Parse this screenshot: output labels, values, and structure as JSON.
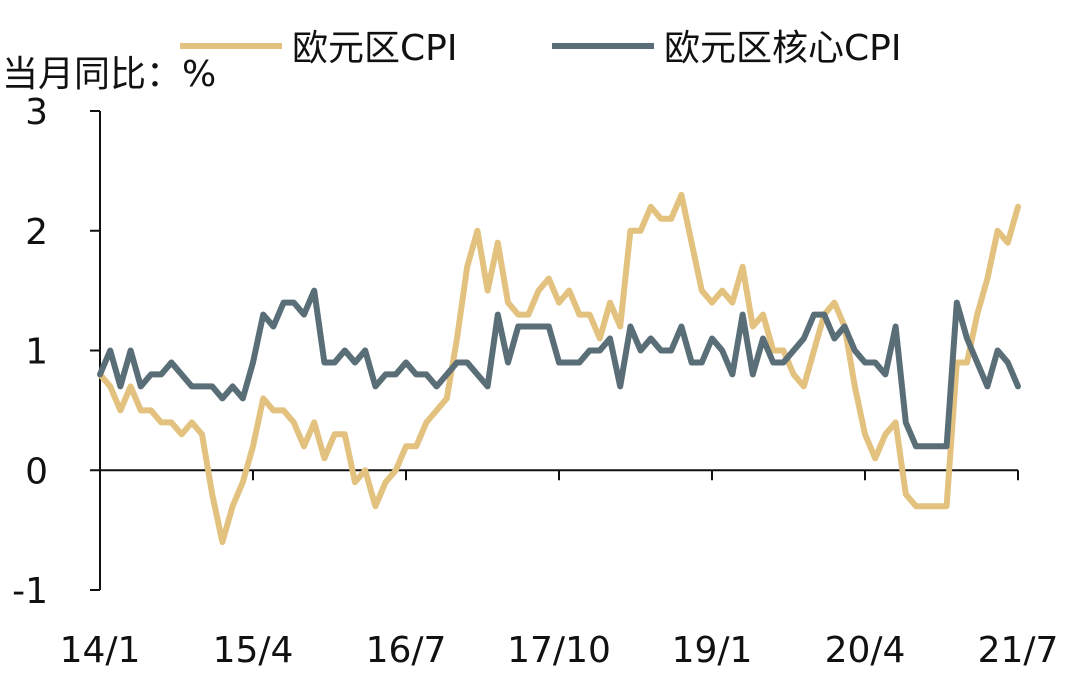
{
  "chart_data": {
    "type": "line",
    "ylabel": "当月同比：%",
    "ylim": [
      -1,
      3
    ],
    "yticks": [
      "3",
      "2",
      "1",
      "0",
      "-1"
    ],
    "xtick_labels": [
      "14/1",
      "15/4",
      "16/7",
      "17/10",
      "19/1",
      "20/4",
      "21/7"
    ],
    "legend_position": "top",
    "grid": false,
    "series": [
      {
        "name": "欧元区CPI",
        "color": "#e3c27f",
        "values": [
          0.8,
          0.7,
          0.5,
          0.7,
          0.5,
          0.5,
          0.4,
          0.4,
          0.3,
          0.4,
          0.3,
          -0.2,
          -0.6,
          -0.3,
          -0.1,
          0.2,
          0.6,
          0.5,
          0.5,
          0.4,
          0.2,
          0.4,
          0.1,
          0.3,
          0.3,
          -0.1,
          0.0,
          -0.3,
          -0.1,
          0.0,
          0.2,
          0.2,
          0.4,
          0.5,
          0.6,
          1.1,
          1.7,
          2.0,
          1.5,
          1.9,
          1.4,
          1.3,
          1.3,
          1.5,
          1.6,
          1.4,
          1.5,
          1.3,
          1.3,
          1.1,
          1.4,
          1.2,
          2.0,
          2.0,
          2.2,
          2.1,
          2.1,
          2.3,
          1.9,
          1.5,
          1.4,
          1.5,
          1.4,
          1.7,
          1.2,
          1.3,
          1.0,
          1.0,
          0.8,
          0.7,
          1.0,
          1.3,
          1.4,
          1.2,
          0.7,
          0.3,
          0.1,
          0.3,
          0.4,
          -0.2,
          -0.3,
          -0.3,
          -0.3,
          -0.3,
          0.9,
          0.9,
          1.3,
          1.6,
          2.0,
          1.9,
          2.2
        ]
      },
      {
        "name": "欧元区核心CPI",
        "color": "#5a6e78",
        "values": [
          0.8,
          1.0,
          0.7,
          1.0,
          0.7,
          0.8,
          0.8,
          0.9,
          0.8,
          0.7,
          0.7,
          0.7,
          0.6,
          0.7,
          0.6,
          0.9,
          1.3,
          1.2,
          1.4,
          1.4,
          1.3,
          1.5,
          0.9,
          0.9,
          1.0,
          0.9,
          1.0,
          0.7,
          0.8,
          0.8,
          0.9,
          0.8,
          0.8,
          0.7,
          0.8,
          0.9,
          0.9,
          0.8,
          0.7,
          1.3,
          0.9,
          1.2,
          1.2,
          1.2,
          1.2,
          0.9,
          0.9,
          0.9,
          1.0,
          1.0,
          1.1,
          0.7,
          1.2,
          1.0,
          1.1,
          1.0,
          1.0,
          1.2,
          0.9,
          0.9,
          1.1,
          1.0,
          0.8,
          1.3,
          0.8,
          1.1,
          0.9,
          0.9,
          1.0,
          1.1,
          1.3,
          1.3,
          1.1,
          1.2,
          1.0,
          0.9,
          0.9,
          0.8,
          1.2,
          0.4,
          0.2,
          0.2,
          0.2,
          0.2,
          1.4,
          1.1,
          0.9,
          0.7,
          1.0,
          0.9,
          0.7
        ]
      }
    ]
  }
}
